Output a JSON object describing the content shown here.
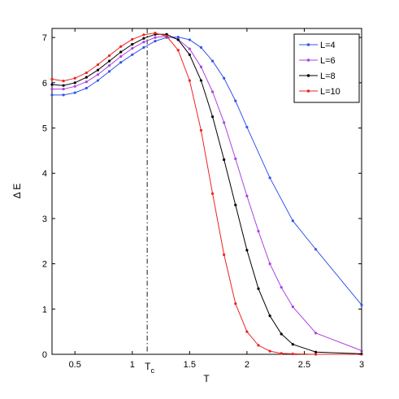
{
  "chart_data": {
    "type": "line",
    "xlabel": "T",
    "ylabel": "Δ E",
    "xlim": [
      0.3,
      3.0
    ],
    "ylim": [
      0,
      7.2
    ],
    "xticks": [
      0.5,
      1,
      1.5,
      2,
      2.5,
      3
    ],
    "xtick_labels": [
      "0.5",
      "1",
      "1.5",
      "2",
      "2.5",
      "3"
    ],
    "yticks": [
      0,
      1,
      2,
      3,
      4,
      5,
      6,
      7
    ],
    "ytick_labels": [
      "0",
      "1",
      "2",
      "3",
      "4",
      "5",
      "6",
      "7"
    ],
    "grid": false,
    "legend_position": "top-right",
    "annotation": {
      "label": "T",
      "subscript": "c",
      "x": 1.13,
      "style": "dash-dot vertical line"
    },
    "series": [
      {
        "name": "L=4",
        "color": "#3355ee",
        "x": [
          0.3,
          0.4,
          0.5,
          0.6,
          0.7,
          0.8,
          0.9,
          1.0,
          1.1,
          1.2,
          1.3,
          1.4,
          1.5,
          1.6,
          1.7,
          1.8,
          1.9,
          2.0,
          2.2,
          2.4,
          2.6,
          3.0
        ],
        "y": [
          5.73,
          5.73,
          5.78,
          5.88,
          6.05,
          6.25,
          6.45,
          6.62,
          6.78,
          6.92,
          7.0,
          7.01,
          6.95,
          6.78,
          6.48,
          6.1,
          5.6,
          5.02,
          3.9,
          2.95,
          2.32,
          1.09
        ]
      },
      {
        "name": "L=6",
        "color": "#aa44dd",
        "x": [
          0.3,
          0.4,
          0.5,
          0.6,
          0.7,
          0.8,
          0.9,
          1.0,
          1.1,
          1.2,
          1.3,
          1.4,
          1.5,
          1.6,
          1.7,
          1.8,
          1.9,
          2.0,
          2.1,
          2.2,
          2.3,
          2.4,
          2.6,
          3.0
        ],
        "y": [
          5.86,
          5.86,
          5.92,
          6.02,
          6.18,
          6.38,
          6.58,
          6.76,
          6.9,
          7.0,
          7.03,
          6.96,
          6.75,
          6.35,
          5.8,
          5.12,
          4.32,
          3.5,
          2.72,
          2.0,
          1.48,
          1.05,
          0.47,
          0.08
        ]
      },
      {
        "name": "L=8",
        "color": "#000000",
        "x": [
          0.3,
          0.4,
          0.5,
          0.6,
          0.7,
          0.8,
          0.9,
          1.0,
          1.1,
          1.2,
          1.3,
          1.4,
          1.5,
          1.6,
          1.7,
          1.8,
          1.9,
          2.0,
          2.1,
          2.2,
          2.3,
          2.4,
          2.6,
          3.0
        ],
        "y": [
          5.96,
          5.94,
          6.0,
          6.12,
          6.28,
          6.48,
          6.68,
          6.85,
          6.98,
          7.07,
          7.07,
          6.95,
          6.62,
          6.05,
          5.25,
          4.3,
          3.3,
          2.3,
          1.45,
          0.85,
          0.45,
          0.22,
          0.05,
          0.01
        ]
      },
      {
        "name": "L=10",
        "color": "#ee2222",
        "x": [
          0.3,
          0.4,
          0.5,
          0.6,
          0.7,
          0.8,
          0.9,
          1.0,
          1.1,
          1.2,
          1.3,
          1.4,
          1.5,
          1.6,
          1.7,
          1.8,
          1.9,
          2.0,
          2.1,
          2.2,
          2.3,
          2.4,
          2.6,
          3.0
        ],
        "y": [
          6.08,
          6.04,
          6.1,
          6.22,
          6.4,
          6.6,
          6.8,
          6.96,
          7.06,
          7.1,
          7.03,
          6.72,
          6.05,
          4.95,
          3.55,
          2.2,
          1.12,
          0.5,
          0.2,
          0.07,
          0.02,
          0.01,
          0.0,
          0.0
        ]
      }
    ]
  }
}
